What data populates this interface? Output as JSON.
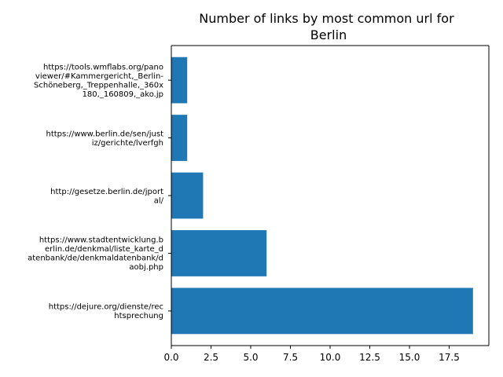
{
  "chart_data": {
    "type": "bar",
    "orientation": "horizontal",
    "title": "Number of links by most common url for Berlin",
    "title_lines": [
      "Number of links by most common url for",
      "Berlin"
    ],
    "xlabel": "",
    "ylabel": "",
    "xlim": [
      0,
      20
    ],
    "x_ticks": [
      "0.0",
      "2.5",
      "5.0",
      "7.5",
      "10.0",
      "12.5",
      "15.0",
      "17.5"
    ],
    "grid": false,
    "bar_color": "#1f77b4",
    "categories": [
      {
        "url": "https://dejure.org/dienste/rechtsprechung",
        "lines": [
          "https://dejure.org/dienste/rec",
          "htsprechung"
        ]
      },
      {
        "url": "https://www.stadtentwicklung.berlin.de/denkmal/liste_karte_datenbank/de/denkmaldatenbank/daobj.php",
        "lines": [
          "https://www.stadtentwicklung.b",
          "erlin.de/denkmal/liste_karte_d",
          "atenbank/de/denkmaldatenbank/d",
          "aobj.php"
        ]
      },
      {
        "url": "http://gesetze.berlin.de/jportal/",
        "lines": [
          "http://gesetze.berlin.de/jport",
          "al/"
        ]
      },
      {
        "url": "https://www.berlin.de/sen/justiz/gerichte/lverfgh",
        "lines": [
          "https://www.berlin.de/sen/just",
          "iz/gerichte/lverfgh"
        ]
      },
      {
        "url": "https://tools.wmflabs.org/panoviewer/#Kammergericht,_Berlin-Schöneberg,_Treppenhalle,_360x180,_160809,_ako.jp",
        "lines": [
          "https://tools.wmflabs.org/pano",
          "viewer/#Kammergericht,_Berlin-",
          "Schöneberg,_Treppenhalle,_360x",
          "180,_160809,_ako.jp"
        ]
      }
    ],
    "values": [
      19,
      6,
      2,
      1,
      1
    ]
  }
}
